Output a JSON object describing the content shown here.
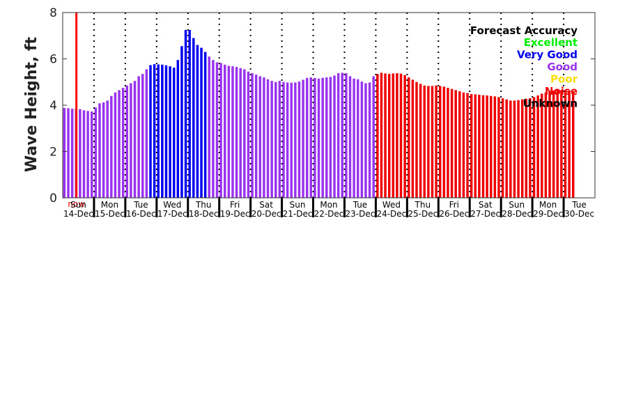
{
  "chart_data": {
    "type": "bar",
    "ylabel": "Wave Height, ft",
    "ylim": [
      0,
      8
    ],
    "yticks": [
      "0",
      "2",
      "4",
      "6",
      "8"
    ],
    "now_label": "now",
    "now_index": 3,
    "days": [
      {
        "weekday": "Sun",
        "date": "14-Dec"
      },
      {
        "weekday": "Mon",
        "date": "15-Dec"
      },
      {
        "weekday": "Tue",
        "date": "16-Dec"
      },
      {
        "weekday": "Wed",
        "date": "17-Dec"
      },
      {
        "weekday": "Thu",
        "date": "18-Dec"
      },
      {
        "weekday": "Fri",
        "date": "19-Dec"
      },
      {
        "weekday": "Sat",
        "date": "20-Dec"
      },
      {
        "weekday": "Sun",
        "date": "21-Dec"
      },
      {
        "weekday": "Mon",
        "date": "22-Dec"
      },
      {
        "weekday": "Tue",
        "date": "23-Dec"
      },
      {
        "weekday": "Wed",
        "date": "24-Dec"
      },
      {
        "weekday": "Thu",
        "date": "25-Dec"
      },
      {
        "weekday": "Fri",
        "date": "26-Dec"
      },
      {
        "weekday": "Sat",
        "date": "27-Dec"
      },
      {
        "weekday": "Sun",
        "date": "28-Dec"
      },
      {
        "weekday": "Mon",
        "date": "29-Dec"
      },
      {
        "weekday": "Tue",
        "date": "30-Dec"
      }
    ],
    "bars_per_day": 8,
    "values": [
      3.88,
      3.87,
      3.85,
      3.85,
      3.83,
      3.78,
      3.75,
      3.73,
      3.9,
      4.08,
      4.12,
      4.2,
      4.4,
      4.55,
      4.65,
      4.75,
      4.85,
      4.95,
      5.05,
      5.25,
      5.35,
      5.55,
      5.73,
      5.77,
      5.76,
      5.75,
      5.72,
      5.68,
      5.62,
      5.95,
      6.55,
      7.25,
      7.25,
      6.9,
      6.6,
      6.48,
      6.3,
      6.1,
      5.95,
      5.85,
      5.82,
      5.75,
      5.7,
      5.68,
      5.65,
      5.6,
      5.55,
      5.45,
      5.38,
      5.32,
      5.25,
      5.2,
      5.12,
      5.05,
      5.0,
      5.05,
      5.0,
      4.98,
      4.97,
      4.98,
      5.02,
      5.1,
      5.18,
      5.2,
      5.18,
      5.15,
      5.18,
      5.2,
      5.22,
      5.28,
      5.38,
      5.4,
      5.38,
      5.25,
      5.15,
      5.12,
      5.02,
      4.95,
      4.98,
      5.25,
      5.35,
      5.4,
      5.37,
      5.35,
      5.37,
      5.38,
      5.36,
      5.3,
      5.2,
      5.1,
      5.0,
      4.92,
      4.85,
      4.83,
      4.83,
      4.85,
      4.83,
      4.8,
      4.75,
      4.7,
      4.65,
      4.6,
      4.55,
      4.52,
      4.48,
      4.47,
      4.45,
      4.43,
      4.42,
      4.4,
      4.38,
      4.35,
      4.3,
      4.25,
      4.2,
      4.2,
      4.22,
      4.25,
      4.28,
      4.3,
      4.35,
      4.42,
      4.5,
      4.55,
      4.6,
      4.63,
      4.65,
      4.65,
      4.65,
      4.63,
      4.6
    ],
    "accuracy": [
      "good",
      "good",
      "good",
      "good",
      "good",
      "good",
      "good",
      "good",
      "good",
      "good",
      "good",
      "good",
      "good",
      "good",
      "good",
      "good",
      "good",
      "good",
      "good",
      "good",
      "good",
      "good",
      "verygood",
      "verygood",
      "verygood",
      "verygood",
      "verygood",
      "verygood",
      "verygood",
      "verygood",
      "verygood",
      "verygood",
      "verygood",
      "verygood",
      "verygood",
      "verygood",
      "verygood",
      "good",
      "good",
      "good",
      "good",
      "good",
      "good",
      "good",
      "good",
      "good",
      "good",
      "good",
      "good",
      "good",
      "good",
      "good",
      "good",
      "good",
      "good",
      "good",
      "good",
      "good",
      "good",
      "good",
      "good",
      "good",
      "good",
      "good",
      "good",
      "good",
      "good",
      "good",
      "good",
      "good",
      "good",
      "good",
      "good",
      "good",
      "good",
      "good",
      "good",
      "good",
      "good",
      "good",
      "noise",
      "noise",
      "noise",
      "noise",
      "noise",
      "noise",
      "noise",
      "noise",
      "noise",
      "noise",
      "noise",
      "noise",
      "noise",
      "noise",
      "noise",
      "noise",
      "noise",
      "noise",
      "noise",
      "noise",
      "noise",
      "noise",
      "noise",
      "noise",
      "noise",
      "noise",
      "noise",
      "noise",
      "noise",
      "noise",
      "noise",
      "noise",
      "noise",
      "noise",
      "noise",
      "noise",
      "noise",
      "noise",
      "noise",
      "noise",
      "noise",
      "noise",
      "noise",
      "noise",
      "noise",
      "noise",
      "noise",
      "noise",
      "noise",
      "noise",
      "noise"
    ],
    "legend": {
      "title": "Forecast Accuracy",
      "position": "top-right",
      "entries": [
        {
          "key": "excellent",
          "label": "Excellent",
          "color": "#00ee00"
        },
        {
          "key": "verygood",
          "label": "Very Good",
          "color": "#0000ee"
        },
        {
          "key": "good",
          "label": "Good",
          "color": "#9933ee"
        },
        {
          "key": "poor",
          "label": "Poor",
          "color": "#ffdd00"
        },
        {
          "key": "noise",
          "label": "Noise",
          "color": "#ee0000"
        },
        {
          "key": "unknown",
          "label": "Unknown",
          "color": "#000000"
        }
      ]
    },
    "colors": {
      "now_line": "#ff0000",
      "day_separator_major": "#000000",
      "day_separator_minor": "#000000"
    }
  }
}
